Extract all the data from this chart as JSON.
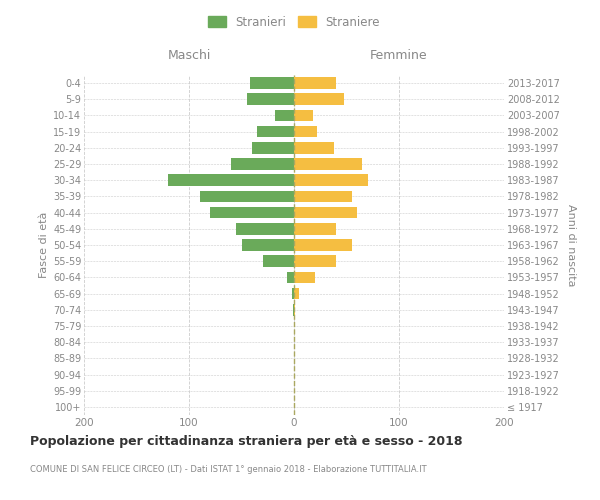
{
  "age_groups": [
    "100+",
    "95-99",
    "90-94",
    "85-89",
    "80-84",
    "75-79",
    "70-74",
    "65-69",
    "60-64",
    "55-59",
    "50-54",
    "45-49",
    "40-44",
    "35-39",
    "30-34",
    "25-29",
    "20-24",
    "15-19",
    "10-14",
    "5-9",
    "0-4"
  ],
  "birth_years": [
    "≤ 1917",
    "1918-1922",
    "1923-1927",
    "1928-1932",
    "1933-1937",
    "1938-1942",
    "1943-1947",
    "1948-1952",
    "1953-1957",
    "1958-1962",
    "1963-1967",
    "1968-1972",
    "1973-1977",
    "1978-1982",
    "1983-1987",
    "1988-1992",
    "1993-1997",
    "1998-2002",
    "2003-2007",
    "2008-2012",
    "2013-2017"
  ],
  "maschi": [
    0,
    0,
    0,
    0,
    0,
    0,
    1,
    2,
    7,
    30,
    50,
    55,
    80,
    90,
    120,
    60,
    40,
    35,
    18,
    45,
    42
  ],
  "femmine": [
    0,
    0,
    0,
    0,
    0,
    0,
    1,
    5,
    20,
    40,
    55,
    40,
    60,
    55,
    70,
    65,
    38,
    22,
    18,
    48,
    40
  ],
  "maschi_color": "#6aaa5a",
  "femmine_color": "#f5be41",
  "grid_color": "#cccccc",
  "text_color": "#888888",
  "dashed_line_color": "#aaaaaa",
  "xlim": 200,
  "title": "Popolazione per cittadinanza straniera per età e sesso - 2018",
  "subtitle": "COMUNE DI SAN FELICE CIRCEO (LT) - Dati ISTAT 1° gennaio 2018 - Elaborazione TUTTITALIA.IT",
  "legend_stranieri": "Stranieri",
  "legend_straniere": "Straniere",
  "ylabel_left": "Fasce di età",
  "ylabel_right": "Anni di nascita",
  "label_maschi": "Maschi",
  "label_femmine": "Femmine"
}
